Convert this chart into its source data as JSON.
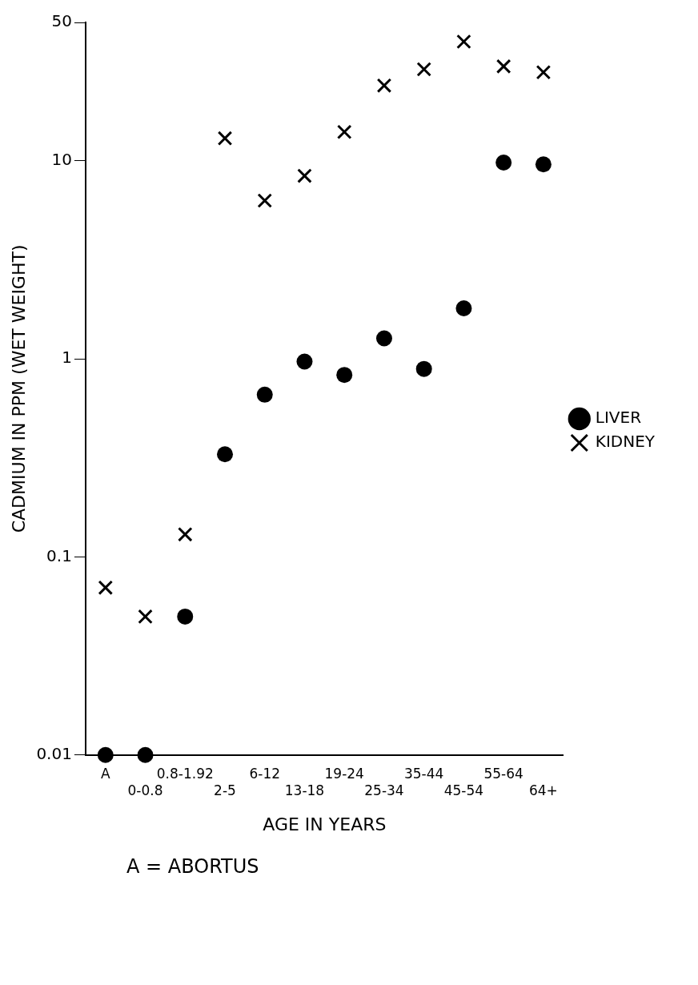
{
  "chart_data": {
    "type": "scatter",
    "xlabel": "AGE IN YEARS",
    "ylabel": "CADMIUM IN PPM (WET WEIGHT)",
    "categories": [
      "A",
      "0-0.8",
      "0.8-1.92",
      "2-5",
      "6-12",
      "13-18",
      "19-24",
      "25-34",
      "35-44",
      "45-54",
      "55-64",
      "64+"
    ],
    "series": [
      {
        "name": "LIVER",
        "color": "#000000",
        "marker": "circle",
        "values": [
          0.01,
          0.01,
          0.05,
          0.33,
          0.66,
          0.97,
          0.83,
          1.27,
          0.89,
          1.8,
          9.8,
          9.6
        ]
      },
      {
        "name": "KIDNEY",
        "color": "#000000",
        "marker": "cross",
        "values": [
          0.07,
          0.05,
          0.13,
          13,
          6.3,
          8.4,
          14,
          24,
          29,
          40,
          30,
          28
        ]
      }
    ],
    "log": "y",
    "ylim": [
      0.01,
      50
    ],
    "yticks": [
      0.01,
      0.1,
      1,
      10,
      50
    ],
    "grid": false,
    "legend": "right",
    "annotations": [
      "A = ABORTUS"
    ]
  }
}
